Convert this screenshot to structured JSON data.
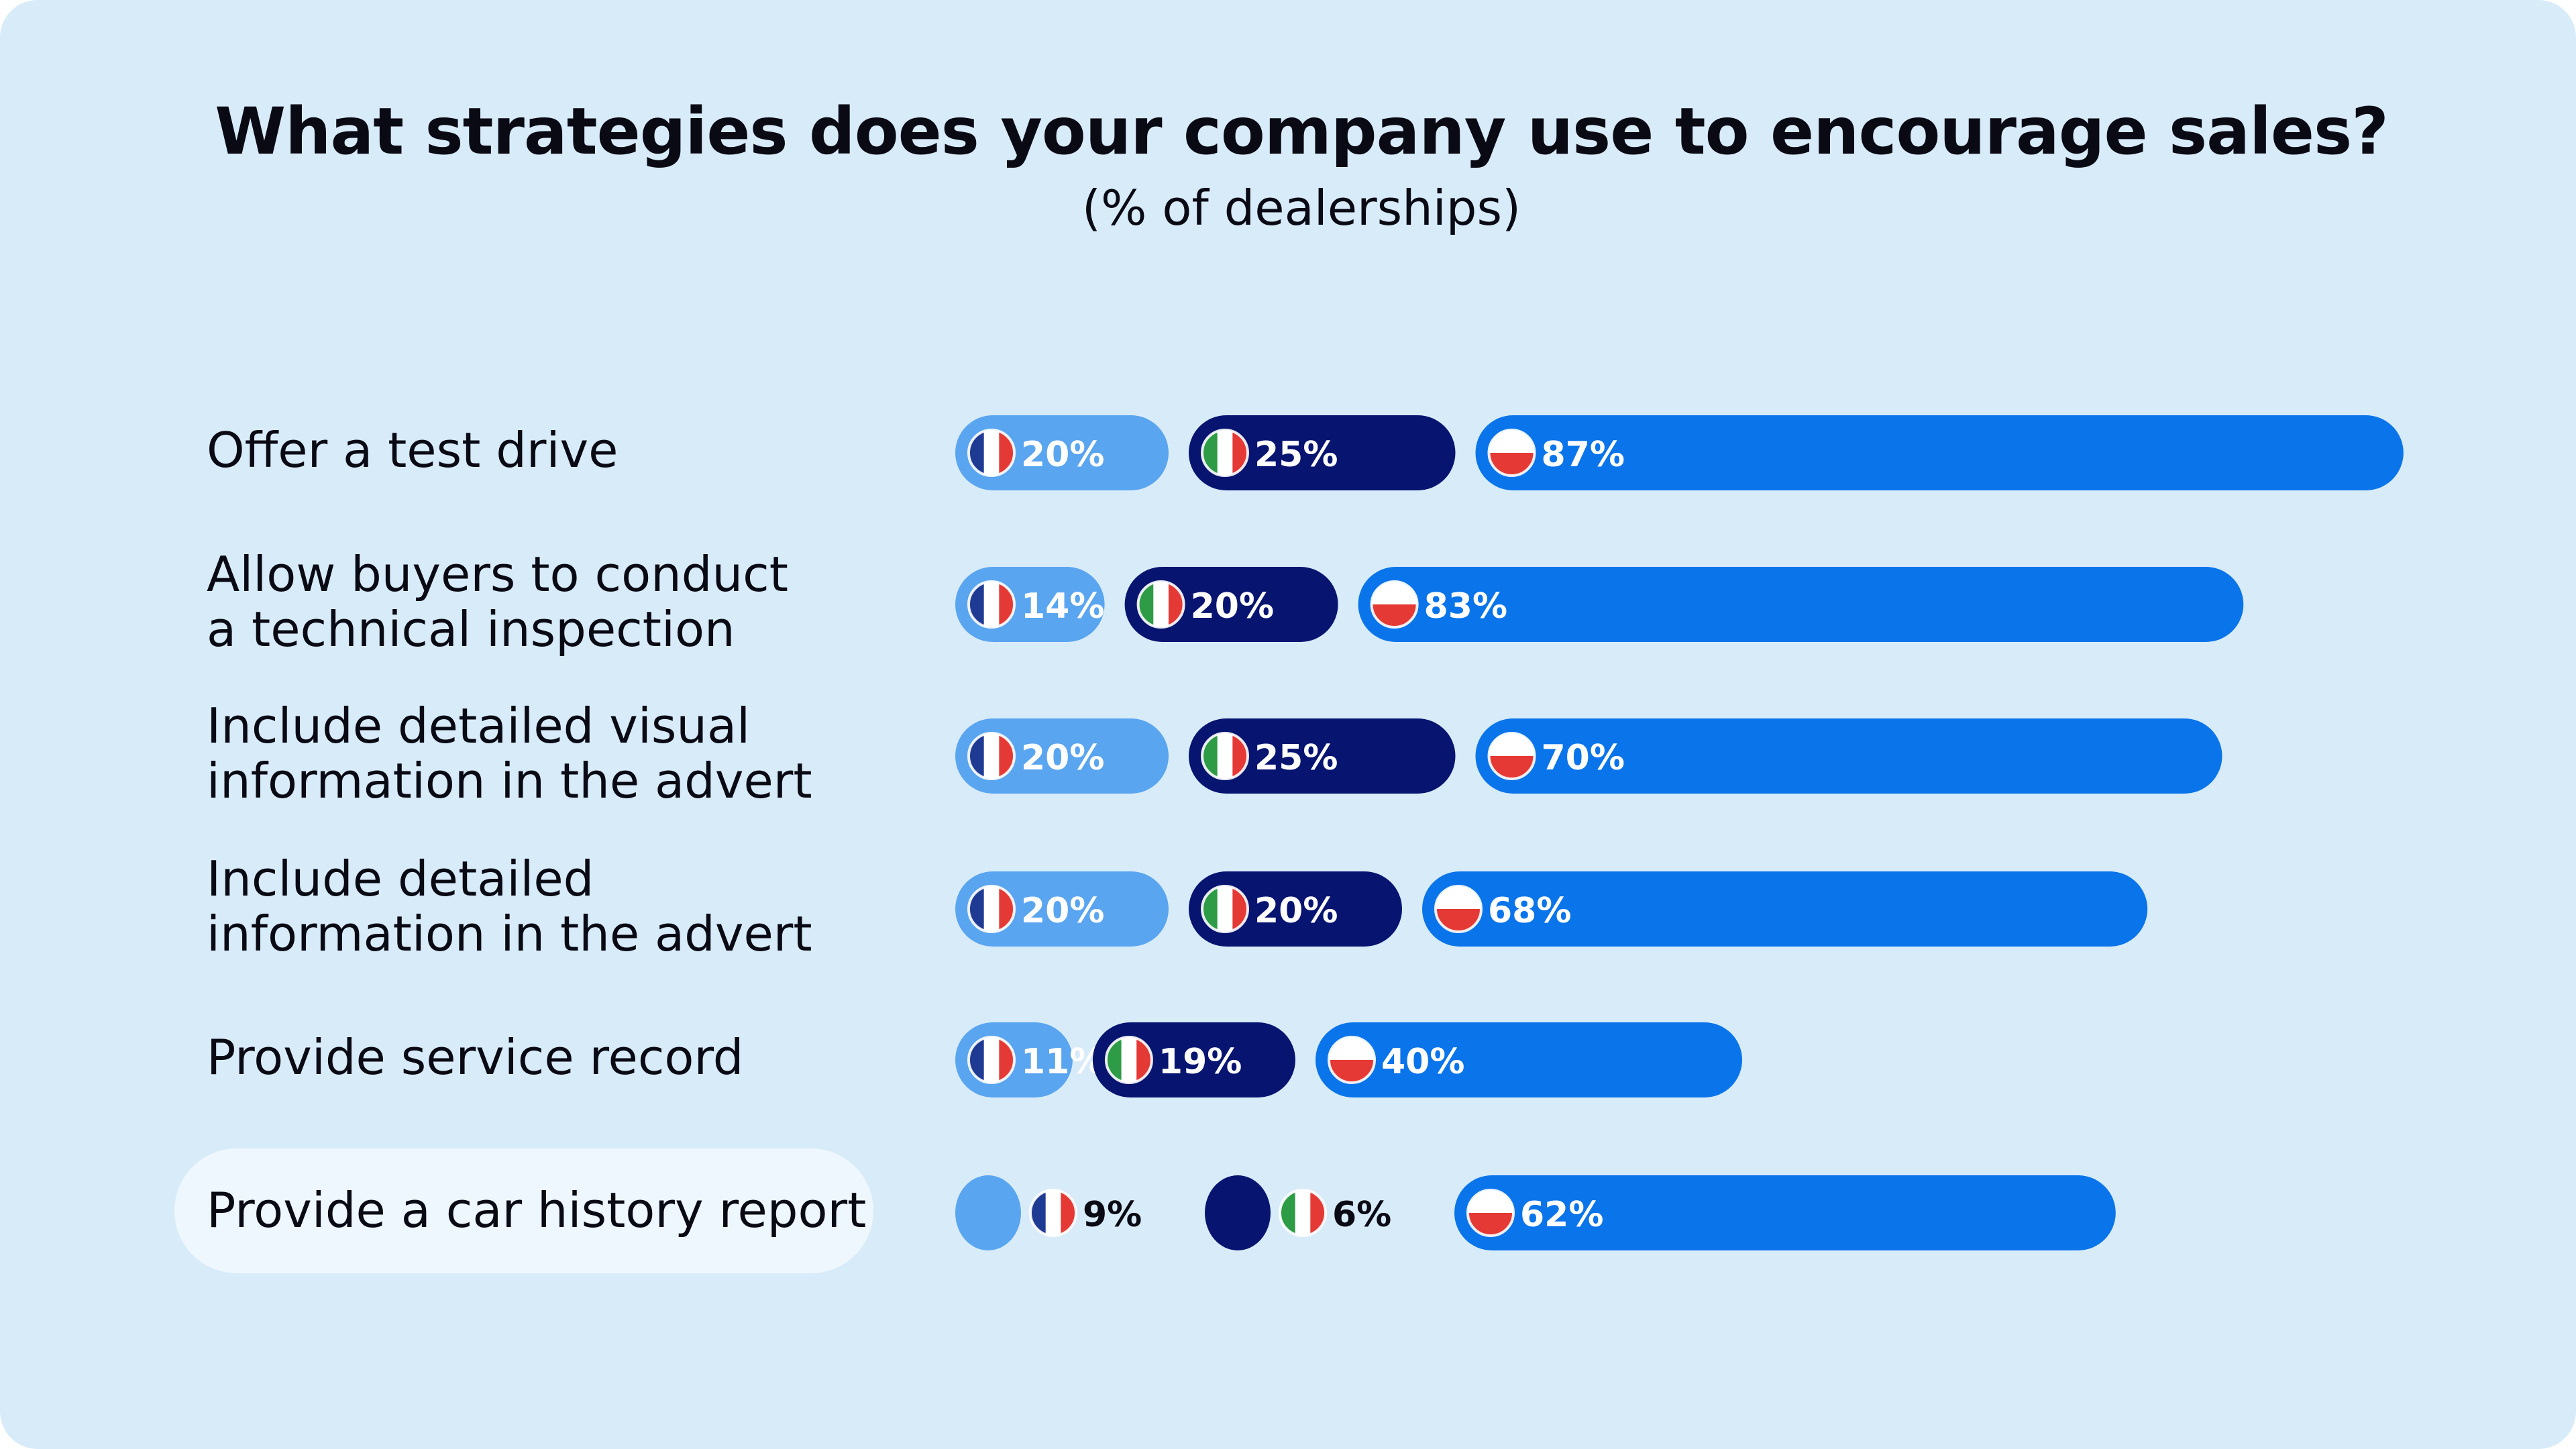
{
  "title": "What strategies does your company use to encourage sales?",
  "subtitle": "(% of dealerships)",
  "colors": {
    "background": "#d8ebf9",
    "france": "#5aa5f0",
    "italy": "#071470",
    "poland": "#0a74ea",
    "highlight": "#eef7fe"
  },
  "chart_data": {
    "type": "bar",
    "title": "What strategies does your company use to encourage sales?",
    "subtitle": "(% of dealerships)",
    "categories": [
      "Offer a test drive",
      "Allow buyers to conduct a technical inspection",
      "Include detailed visual information in the advert",
      "Include detailed information in the advert",
      "Provide service record",
      "Provide a car history report"
    ],
    "category_lines": [
      [
        "Offer a test drive"
      ],
      [
        "Allow buyers to conduct",
        "a technical inspection"
      ],
      [
        "Include detailed visual",
        "information in the advert"
      ],
      [
        "Include detailed",
        "information in the advert"
      ],
      [
        "Provide service record"
      ],
      [
        "Provide a car history report"
      ]
    ],
    "highlighted_category": "Provide a car history report",
    "series": [
      {
        "name": "France",
        "flag": "france-flag-icon",
        "values": [
          20,
          14,
          20,
          20,
          11,
          9
        ],
        "labels": [
          "20%",
          "14%",
          "20%",
          "20%",
          "11%",
          "9%"
        ]
      },
      {
        "name": "Italy",
        "flag": "italy-flag-icon",
        "values": [
          25,
          20,
          25,
          20,
          19,
          6
        ],
        "labels": [
          "25%",
          "20%",
          "25%",
          "20%",
          "19%",
          "6%"
        ]
      },
      {
        "name": "Poland",
        "flag": "poland-flag-icon",
        "values": [
          87,
          83,
          70,
          68,
          40,
          62
        ],
        "labels": [
          "87%",
          "83%",
          "70%",
          "68%",
          "40%",
          "62%"
        ]
      }
    ],
    "unit": "%",
    "orientation": "horizontal"
  }
}
